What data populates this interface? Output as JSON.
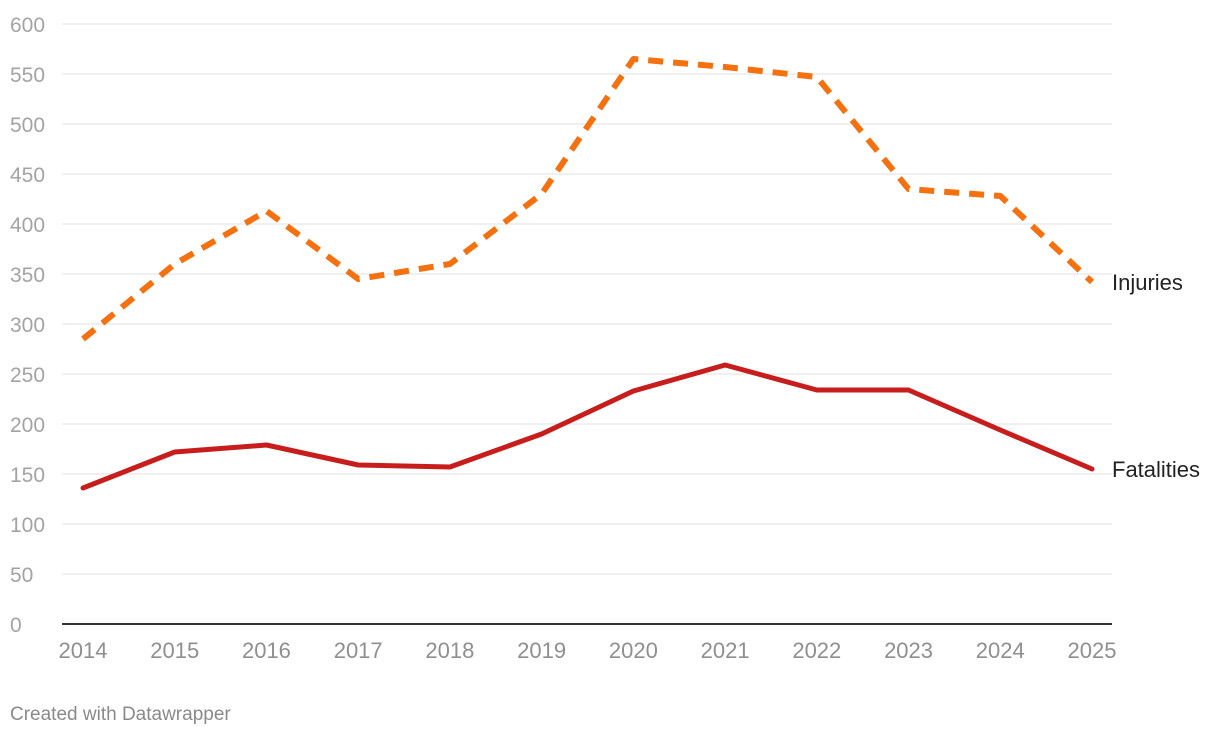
{
  "chart_data": {
    "type": "line",
    "title": "",
    "xlabel": "",
    "ylabel": "",
    "x": [
      "2014",
      "2015",
      "2016",
      "2017",
      "2018",
      "2019",
      "2020",
      "2021",
      "2022",
      "2023",
      "2024",
      "2025"
    ],
    "ylim": [
      0,
      600
    ],
    "y_ticks": [
      "0",
      "50",
      "100",
      "150",
      "200",
      "250",
      "300",
      "350",
      "400",
      "450",
      "500",
      "550",
      "600"
    ],
    "grid": true,
    "series": [
      {
        "name": "Injuries",
        "style": "dashed",
        "color": "#f5700f",
        "values": [
          285,
          360,
          413,
          345,
          360,
          430,
          565,
          557,
          547,
          435,
          428,
          342
        ]
      },
      {
        "name": "Fatalities",
        "style": "solid",
        "color": "#c71e1d",
        "values": [
          136,
          172,
          179,
          159,
          157,
          190,
          233,
          259,
          234,
          234,
          194,
          155
        ]
      }
    ]
  },
  "footer": {
    "credit": "Created with Datawrapper"
  }
}
